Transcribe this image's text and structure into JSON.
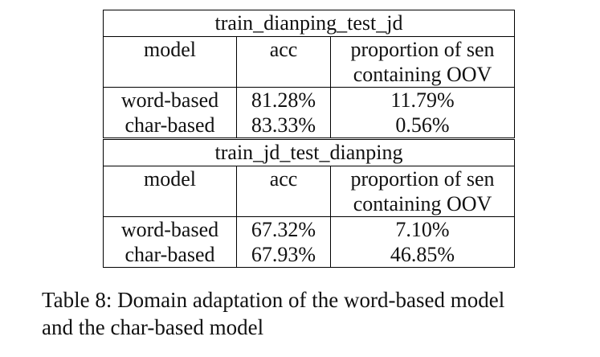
{
  "tables": [
    {
      "title": "train_dianping_test_jd",
      "header": {
        "model": "model",
        "acc": "acc",
        "prop_line1": "proportion of sen",
        "prop_line2": "containing OOV"
      },
      "rows": [
        {
          "model": "word-based",
          "acc": "81.28%",
          "prop": "11.79%"
        },
        {
          "model": "char-based",
          "acc": "83.33%",
          "prop": "0.56%"
        }
      ]
    },
    {
      "title": "train_jd_test_dianping",
      "header": {
        "model": "model",
        "acc": "acc",
        "prop_line1": "proportion of sen",
        "prop_line2": "containing OOV"
      },
      "rows": [
        {
          "model": "word-based",
          "acc": "67.32%",
          "prop": "7.10%"
        },
        {
          "model": "char-based",
          "acc": "67.93%",
          "prop": "46.85%"
        }
      ]
    }
  ],
  "caption": {
    "line1": "Table 8: Domain adaptation of the word-based model",
    "line2": "and the char-based model"
  }
}
